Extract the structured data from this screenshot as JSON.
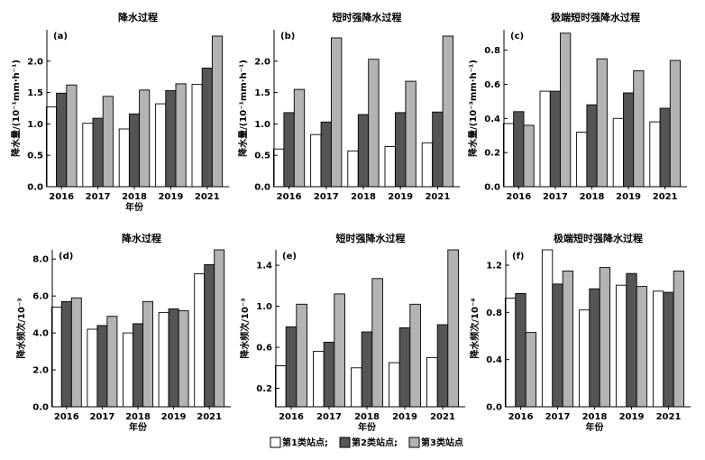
{
  "legend": {
    "entries": [
      {
        "name": "第1类站点;",
        "color": "#ffffff"
      },
      {
        "name": "第2类站点;",
        "color": "#555555"
      },
      {
        "name": "第3类站点",
        "color": "#b3b3b3"
      }
    ]
  },
  "chart_data": [
    {
      "panel": "(a)",
      "type": "bar",
      "title": "降水过程",
      "xlabel": "年份",
      "ylabel": "降水量/(10⁻¹mm·h⁻¹)",
      "categories": [
        "2016",
        "2017",
        "2018",
        "2019",
        "2021"
      ],
      "ylim": [
        0,
        2.5
      ],
      "yticks": [
        "0.0",
        "0.5",
        "1.0",
        "1.5",
        "2.0"
      ],
      "ytick_values": [
        0,
        0.5,
        1.0,
        1.5,
        2.0
      ],
      "series": [
        {
          "name": "第1类站点",
          "values": [
            1.27,
            1.01,
            0.92,
            1.32,
            1.63
          ]
        },
        {
          "name": "第2类站点",
          "values": [
            1.49,
            1.09,
            1.16,
            1.53,
            1.89
          ]
        },
        {
          "name": "第3类站点",
          "values": [
            1.62,
            1.44,
            1.54,
            1.64,
            2.4
          ]
        }
      ]
    },
    {
      "panel": "(b)",
      "type": "bar",
      "title": "短时强降水过程",
      "xlabel": "",
      "ylabel": "降水量/(10⁻¹mm·h⁻¹)",
      "categories": [
        "2016",
        "2017",
        "2018",
        "2019",
        "2021"
      ],
      "ylim": [
        0,
        2.5
      ],
      "yticks": [
        "0.0",
        "0.5",
        "1.0",
        "1.5",
        "2.0"
      ],
      "ytick_values": [
        0,
        0.5,
        1.0,
        1.5,
        2.0
      ],
      "series": [
        {
          "name": "第1类站点",
          "values": [
            0.6,
            0.83,
            0.57,
            0.64,
            0.7
          ]
        },
        {
          "name": "第2类站点",
          "values": [
            1.18,
            1.03,
            1.15,
            1.18,
            1.19
          ]
        },
        {
          "name": "第3类站点",
          "values": [
            1.55,
            2.37,
            2.03,
            1.68,
            2.4
          ]
        }
      ]
    },
    {
      "panel": "(c)",
      "type": "bar",
      "title": "极端短时强降水过程",
      "xlabel": "",
      "ylabel": "降水量/(10⁻³mm·h⁻¹)",
      "categories": [
        "2016",
        "2017",
        "2018",
        "2019",
        "2021"
      ],
      "ylim": [
        0,
        0.92
      ],
      "yticks": [
        "0.0",
        "0.2",
        "0.4",
        "0.6",
        "0.8"
      ],
      "ytick_values": [
        0,
        0.2,
        0.4,
        0.6,
        0.8
      ],
      "series": [
        {
          "name": "第1类站点",
          "values": [
            0.37,
            0.56,
            0.32,
            0.4,
            0.38
          ]
        },
        {
          "name": "第2类站点",
          "values": [
            0.44,
            0.56,
            0.48,
            0.55,
            0.46
          ]
        },
        {
          "name": "第3类站点",
          "values": [
            0.36,
            0.9,
            0.75,
            0.68,
            0.74
          ]
        }
      ]
    },
    {
      "panel": "(d)",
      "type": "bar",
      "title": "降水过程",
      "xlabel": "年份",
      "ylabel": "降水频次/10⁻³",
      "categories": [
        "2016",
        "2017",
        "2018",
        "2019",
        "2021"
      ],
      "ylim": [
        0,
        8.5
      ],
      "yticks": [
        "0.0",
        "2.0",
        "4.0",
        "6.0",
        "8.0"
      ],
      "ytick_values": [
        0,
        2,
        4,
        6,
        8
      ],
      "series": [
        {
          "name": "第1类站点",
          "values": [
            5.4,
            4.2,
            4.0,
            5.1,
            7.2
          ]
        },
        {
          "name": "第2类站点",
          "values": [
            5.7,
            4.4,
            4.5,
            5.3,
            7.7
          ]
        },
        {
          "name": "第3类站点",
          "values": [
            5.9,
            4.9,
            5.7,
            5.2,
            8.5
          ]
        }
      ]
    },
    {
      "panel": "(e)",
      "type": "bar",
      "title": "短时强降水过程",
      "xlabel": "年份",
      "ylabel": "降水频次/10⁻³",
      "categories": [
        "2016",
        "2017",
        "2018",
        "2019",
        "2021"
      ],
      "ylim": [
        0.02,
        1.55
      ],
      "yticks": [
        "0.2",
        "0.6",
        "1.0",
        "1.4"
      ],
      "ytick_values": [
        0.2,
        0.6,
        1.0,
        1.4
      ],
      "series": [
        {
          "name": "第1类站点",
          "values": [
            0.42,
            0.56,
            0.4,
            0.45,
            0.5
          ]
        },
        {
          "name": "第2类站点",
          "values": [
            0.8,
            0.65,
            0.75,
            0.79,
            0.82
          ]
        },
        {
          "name": "第3类站点",
          "values": [
            1.02,
            1.12,
            1.27,
            1.02,
            1.55
          ]
        }
      ]
    },
    {
      "panel": "(f)",
      "type": "bar",
      "title": "极端短时强降水过程",
      "xlabel": "年份",
      "ylabel": "降水频次/10⁻⁴",
      "categories": [
        "2016",
        "2017",
        "2018",
        "2019",
        "2021"
      ],
      "ylim": [
        0,
        1.33
      ],
      "yticks": [
        "0.0",
        "0.4",
        "0.8",
        "1.2"
      ],
      "ytick_values": [
        0,
        0.4,
        0.8,
        1.2
      ],
      "series": [
        {
          "name": "第1类站点",
          "values": [
            0.92,
            1.33,
            0.82,
            1.03,
            0.98
          ]
        },
        {
          "name": "第2类站点",
          "values": [
            0.96,
            1.04,
            1.0,
            1.13,
            0.97
          ]
        },
        {
          "name": "第3类站点",
          "values": [
            0.63,
            1.15,
            1.18,
            1.02,
            1.15
          ]
        }
      ]
    }
  ]
}
